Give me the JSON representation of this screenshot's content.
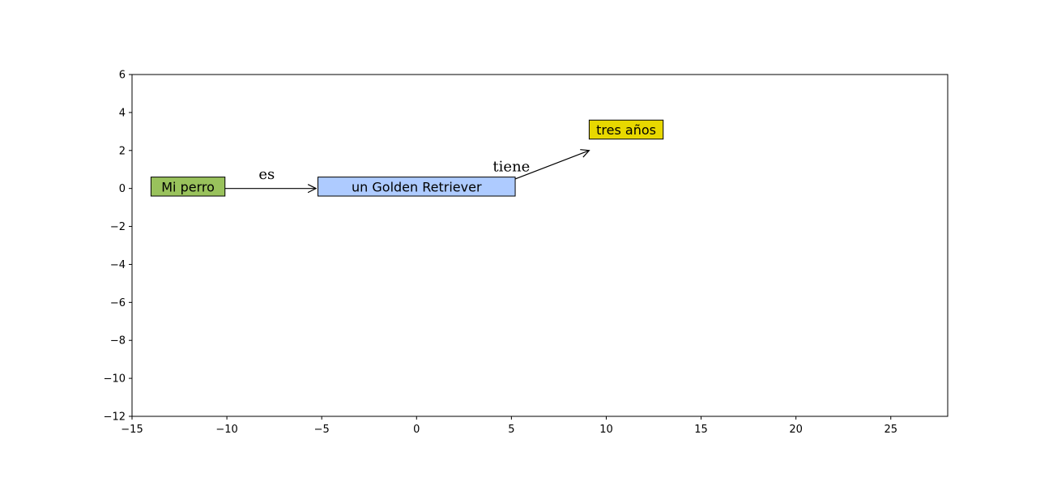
{
  "diagram": {
    "axes": {
      "xlim": [
        -15,
        28
      ],
      "ylim": [
        -12,
        6
      ],
      "x_ticks": [
        {
          "value": -15,
          "label": "−15"
        },
        {
          "value": -10,
          "label": "−10"
        },
        {
          "value": -5,
          "label": "−5"
        },
        {
          "value": 0,
          "label": "0"
        },
        {
          "value": 5,
          "label": "5"
        },
        {
          "value": 10,
          "label": "10"
        },
        {
          "value": 15,
          "label": "15"
        },
        {
          "value": 20,
          "label": "20"
        },
        {
          "value": 25,
          "label": "25"
        }
      ],
      "y_ticks": [
        {
          "value": 6,
          "label": "6"
        },
        {
          "value": 4,
          "label": "4"
        },
        {
          "value": 2,
          "label": "2"
        },
        {
          "value": 0,
          "label": "0"
        },
        {
          "value": -2,
          "label": "−2"
        },
        {
          "value": -4,
          "label": "−4"
        },
        {
          "value": -6,
          "label": "−6"
        },
        {
          "value": -8,
          "label": "−8"
        },
        {
          "value": -10,
          "label": "−10"
        },
        {
          "value": -12,
          "label": "−12"
        }
      ]
    },
    "nodes": [
      {
        "id": "mi-perro",
        "label": "Mi perro",
        "x": [
          -14,
          -10.1
        ],
        "y": [
          -0.4,
          0.6
        ],
        "color": "#99c25c"
      },
      {
        "id": "golden-retriever",
        "label": "un Golden Retriever",
        "x": [
          -5.2,
          5.2
        ],
        "y": [
          -0.4,
          0.6
        ],
        "color": "#aecbff"
      },
      {
        "id": "tres-anos",
        "label": "tres años",
        "x": [
          9.1,
          13
        ],
        "y": [
          2.6,
          3.6
        ],
        "color": "#e8d800"
      }
    ],
    "edges": [
      {
        "id": "es",
        "label": "es",
        "from": [
          -10.1,
          0
        ],
        "to": [
          -5.3,
          0
        ],
        "label_at": [
          -7.9,
          0.5
        ]
      },
      {
        "id": "tiene",
        "label": "tiene",
        "from": [
          5.2,
          0.5
        ],
        "to": [
          9.1,
          2
        ],
        "label_at": [
          5,
          0.9
        ]
      }
    ]
  }
}
